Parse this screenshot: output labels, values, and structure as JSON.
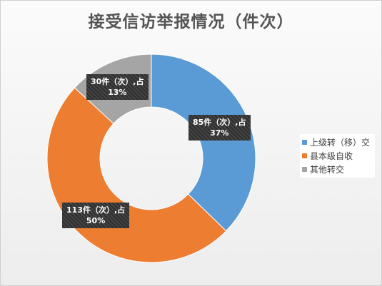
{
  "chart_data": {
    "type": "pie",
    "title": "接受信访举报情况（件次）",
    "categories": [
      "上级转（移）交",
      "县本级自收",
      "其他转交"
    ],
    "values": [
      85,
      113,
      30
    ],
    "unit": "件（次）",
    "percents": [
      "37%",
      "50%",
      "13%"
    ],
    "data_labels": [
      {
        "line1": "85件（次）,占",
        "line2": "37%"
      },
      {
        "line1": "113件（次）,占",
        "line2": "50%"
      },
      {
        "line1": "30件（次）,占",
        "line2": "13%"
      }
    ],
    "colors": [
      "#5b9bd5",
      "#ed7d31",
      "#a5a5a5"
    ],
    "legend_position": "right",
    "donut": true
  }
}
